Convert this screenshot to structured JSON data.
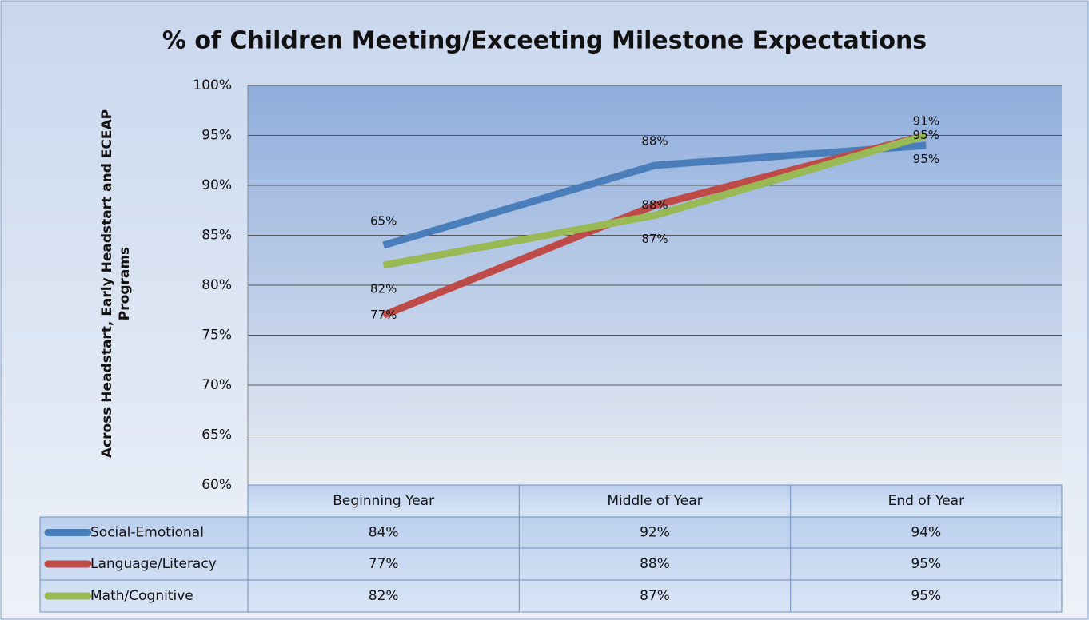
{
  "chart_data": {
    "type": "line",
    "title": "% of Children Meeting/Exceeting Milestone Expectations",
    "y_label": "Across Headstart, Early Headstart and ECEAP Programs",
    "categories": [
      "Beginning Year",
      "Middle of Year",
      "End of Year"
    ],
    "series": [
      {
        "name": "Social-Emotional",
        "color": "#4a7ebb",
        "values": [
          84,
          92,
          94
        ],
        "value_labels": [
          "84%",
          "92%",
          "94%"
        ]
      },
      {
        "name": "Language/Literacy",
        "color": "#be4b48",
        "values": [
          77,
          88,
          95
        ],
        "value_labels": [
          "77%",
          "88%",
          "95%"
        ]
      },
      {
        "name": "Math/Cognitive",
        "color": "#98b954",
        "values": [
          82,
          87,
          95
        ],
        "value_labels": [
          "82%",
          "87%",
          "95%"
        ]
      }
    ],
    "annotations": [
      "65%",
      "88%",
      "91%"
    ],
    "ylim": [
      60,
      100
    ],
    "yticks": [
      {
        "value": 60,
        "label": "60%"
      },
      {
        "value": 65,
        "label": "65%"
      },
      {
        "value": 70,
        "label": "70%"
      },
      {
        "value": 75,
        "label": "75%"
      },
      {
        "value": 80,
        "label": "80%"
      },
      {
        "value": 85,
        "label": "85%"
      },
      {
        "value": 90,
        "label": "90%"
      },
      {
        "value": 95,
        "label": "95%"
      },
      {
        "value": 100,
        "label": "100%"
      }
    ],
    "grid": true,
    "data_table": true
  }
}
